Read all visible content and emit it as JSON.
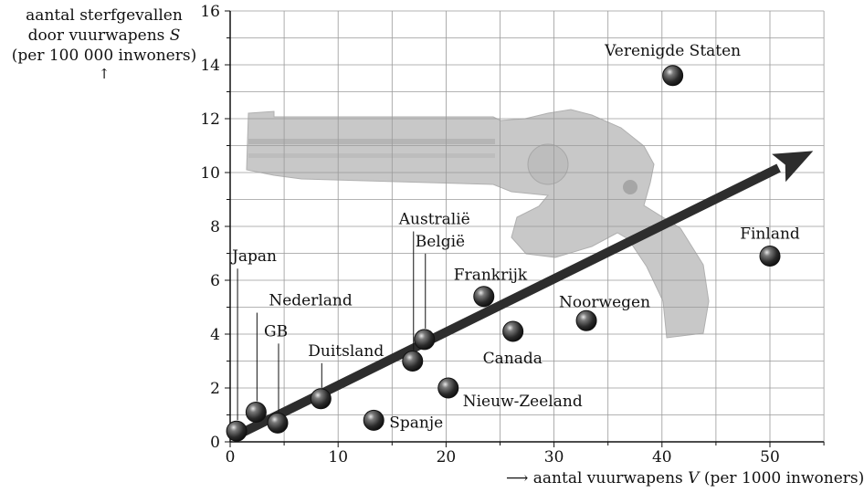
{
  "chart_data": {
    "type": "scatter",
    "ylabel_lines": [
      "aantal sterfgevallen",
      "door vuurwapens",
      "(per 100 000 inwoners)"
    ],
    "ylabel_var": "S",
    "xlabel": "aantal vuurwapens",
    "xlabel_var": "V",
    "xlabel_unit": "(per 1000 inwoners)",
    "xlim": [
      0,
      55
    ],
    "ylim": [
      0,
      16
    ],
    "xticks": [
      0,
      10,
      20,
      30,
      40,
      50
    ],
    "yticks": [
      0,
      2,
      4,
      6,
      8,
      10,
      12,
      14,
      16
    ],
    "grid": true,
    "points": [
      {
        "label": "Japan",
        "x": 0.6,
        "y": 0.4
      },
      {
        "label": "Nederland",
        "x": 2.4,
        "y": 1.1
      },
      {
        "label": "GB",
        "x": 4.4,
        "y": 0.7
      },
      {
        "label": "Duitsland",
        "x": 8.4,
        "y": 1.6
      },
      {
        "label": "Spanje",
        "x": 13.3,
        "y": 0.8
      },
      {
        "label": "Australië",
        "x": 16.9,
        "y": 3.0
      },
      {
        "label": "België",
        "x": 18.0,
        "y": 3.8
      },
      {
        "label": "Nieuw-Zeeland",
        "x": 20.2,
        "y": 2.0
      },
      {
        "label": "Frankrijk",
        "x": 23.5,
        "y": 5.4
      },
      {
        "label": "Canada",
        "x": 26.2,
        "y": 4.1
      },
      {
        "label": "Noorwegen",
        "x": 33.0,
        "y": 4.5
      },
      {
        "label": "Verenigde Staten",
        "x": 41.0,
        "y": 13.6
      },
      {
        "label": "Finland",
        "x": 50.0,
        "y": 6.9
      }
    ],
    "trend_arrow": {
      "from": [
        0.4,
        0.2
      ],
      "to": [
        54,
        10.8
      ]
    }
  }
}
